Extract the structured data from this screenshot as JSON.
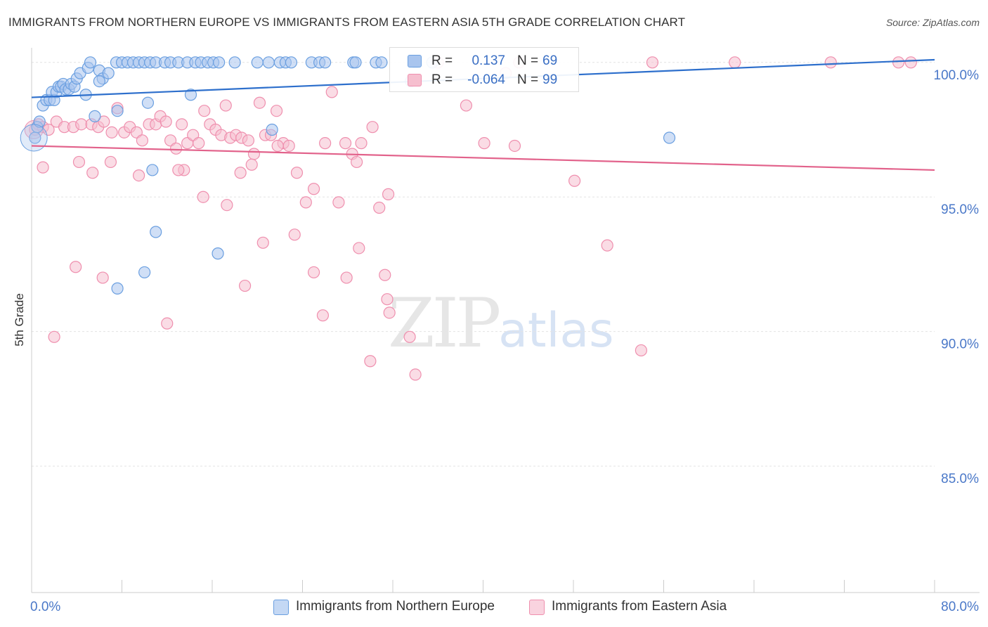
{
  "title": "IMMIGRANTS FROM NORTHERN EUROPE VS IMMIGRANTS FROM EASTERN ASIA 5TH GRADE CORRELATION CHART",
  "source": "Source: ZipAtlas.com",
  "watermark": {
    "zip": "ZIP",
    "atlas": "atlas"
  },
  "legend": {
    "r_label": "R =",
    "n_label": "N =",
    "rows": [
      {
        "r": "0.137",
        "n": "69",
        "color": "#6a9fe0"
      },
      {
        "r": "-0.064",
        "n": "99",
        "color": "#ef8fae"
      }
    ]
  },
  "colors": {
    "blue_fill": "#a9c5ee",
    "blue_stroke": "#6a9fe0",
    "blue_line": "#2d6fcc",
    "pink_fill": "#f6bfcf",
    "pink_stroke": "#ef8fae",
    "pink_line": "#e2628b",
    "axis_label": "#4a78c8"
  },
  "chart_data": {
    "type": "scatter",
    "title": "IMMIGRANTS FROM NORTHERN EUROPE VS IMMIGRANTS FROM EASTERN ASIA 5TH GRADE CORRELATION CHART",
    "xlabel": "",
    "ylabel": "5th Grade",
    "xlim": [
      0,
      80
    ],
    "ylim": [
      80.3,
      100.7
    ],
    "x_tick_labels": [
      {
        "value": 0,
        "label": "0.0%"
      },
      {
        "value": 80,
        "label": "80.0%"
      }
    ],
    "y_tick_labels": [
      {
        "value": 100,
        "label": "100.0%"
      },
      {
        "value": 95,
        "label": "95.0%"
      },
      {
        "value": 90,
        "label": "90.0%"
      },
      {
        "value": 85,
        "label": "85.0%"
      }
    ],
    "grid": true,
    "legend_position": "top-center",
    "series": [
      {
        "name": "Immigrants from Northern Europe",
        "r": 0.137,
        "n": 69,
        "trend": {
          "x": [
            0,
            80
          ],
          "y": [
            98.7,
            100.1
          ]
        },
        "points": [
          [
            0.3,
            97.2
          ],
          [
            0.5,
            97.6
          ],
          [
            0.7,
            97.8
          ],
          [
            1.0,
            98.4
          ],
          [
            1.3,
            98.6
          ],
          [
            1.6,
            98.6
          ],
          [
            1.8,
            98.9
          ],
          [
            2.0,
            98.6
          ],
          [
            2.2,
            98.9
          ],
          [
            2.4,
            99.1
          ],
          [
            2.6,
            99.1
          ],
          [
            2.8,
            99.2
          ],
          [
            3.0,
            99.0
          ],
          [
            3.3,
            99.0
          ],
          [
            3.5,
            99.2
          ],
          [
            3.8,
            99.1
          ],
          [
            4.0,
            99.4
          ],
          [
            4.3,
            99.6
          ],
          [
            4.8,
            98.8
          ],
          [
            5.0,
            99.8
          ],
          [
            5.2,
            100.0
          ],
          [
            6.0,
            99.7
          ],
          [
            6.3,
            99.4
          ],
          [
            6.8,
            99.6
          ],
          [
            6.0,
            99.3
          ],
          [
            7.5,
            100.0
          ],
          [
            8.0,
            100.0
          ],
          [
            8.5,
            100.0
          ],
          [
            9.0,
            100.0
          ],
          [
            9.5,
            100.0
          ],
          [
            10.0,
            100.0
          ],
          [
            10.5,
            100.0
          ],
          [
            11.0,
            100.0
          ],
          [
            11.8,
            100.0
          ],
          [
            12.3,
            100.0
          ],
          [
            13.0,
            100.0
          ],
          [
            13.8,
            100.0
          ],
          [
            14.5,
            100.0
          ],
          [
            15.0,
            100.0
          ],
          [
            15.6,
            100.0
          ],
          [
            16.1,
            100.0
          ],
          [
            16.6,
            100.0
          ],
          [
            18.0,
            100.0
          ],
          [
            20.0,
            100.0
          ],
          [
            21.0,
            100.0
          ],
          [
            22.0,
            100.0
          ],
          [
            22.5,
            100.0
          ],
          [
            23.0,
            100.0
          ],
          [
            24.8,
            100.0
          ],
          [
            25.5,
            100.0
          ],
          [
            26.0,
            100.0
          ],
          [
            28.5,
            100.0
          ],
          [
            28.7,
            100.0
          ],
          [
            30.5,
            100.0
          ],
          [
            31.0,
            100.0
          ],
          [
            34.0,
            100.0
          ],
          [
            33.6,
            99.3
          ],
          [
            35.5,
            100.0
          ],
          [
            14.1,
            98.8
          ],
          [
            10.3,
            98.5
          ],
          [
            5.6,
            98.0
          ],
          [
            7.6,
            98.2
          ],
          [
            21.3,
            97.5
          ],
          [
            56.5,
            97.2
          ],
          [
            10.7,
            96.0
          ],
          [
            11.0,
            93.7
          ],
          [
            16.5,
            92.9
          ],
          [
            10.0,
            92.2
          ],
          [
            7.6,
            91.6
          ]
        ]
      },
      {
        "name": "Immigrants from Eastern Asia",
        "r": -0.064,
        "n": 99,
        "trend": {
          "x": [
            0,
            80
          ],
          "y": [
            96.9,
            96.0
          ]
        },
        "points": [
          [
            0.3,
            97.5
          ],
          [
            0.6,
            97.7
          ],
          [
            1.0,
            97.6
          ],
          [
            1.5,
            97.5
          ],
          [
            2.2,
            97.8
          ],
          [
            2.9,
            97.6
          ],
          [
            3.7,
            97.6
          ],
          [
            4.4,
            97.7
          ],
          [
            5.3,
            97.7
          ],
          [
            5.9,
            97.6
          ],
          [
            6.4,
            97.8
          ],
          [
            7.1,
            97.4
          ],
          [
            7.6,
            98.3
          ],
          [
            8.2,
            97.4
          ],
          [
            8.7,
            97.6
          ],
          [
            9.3,
            97.4
          ],
          [
            9.8,
            97.1
          ],
          [
            10.4,
            97.7
          ],
          [
            11.0,
            97.7
          ],
          [
            11.4,
            98.0
          ],
          [
            11.9,
            97.8
          ],
          [
            12.3,
            97.1
          ],
          [
            12.8,
            96.8
          ],
          [
            13.3,
            97.7
          ],
          [
            13.8,
            97.0
          ],
          [
            14.3,
            97.3
          ],
          [
            14.8,
            97.0
          ],
          [
            15.3,
            98.2
          ],
          [
            15.8,
            97.7
          ],
          [
            16.3,
            97.5
          ],
          [
            16.8,
            97.3
          ],
          [
            17.2,
            98.4
          ],
          [
            17.6,
            97.2
          ],
          [
            18.1,
            97.3
          ],
          [
            18.6,
            97.2
          ],
          [
            19.2,
            97.1
          ],
          [
            19.7,
            96.6
          ],
          [
            20.2,
            98.5
          ],
          [
            20.7,
            97.3
          ],
          [
            21.2,
            97.3
          ],
          [
            21.7,
            98.2
          ],
          [
            22.3,
            97.0
          ],
          [
            22.8,
            96.9
          ],
          [
            23.5,
            95.9
          ],
          [
            24.3,
            94.8
          ],
          [
            25.0,
            95.3
          ],
          [
            26.0,
            97.0
          ],
          [
            26.6,
            98.9
          ],
          [
            27.2,
            94.8
          ],
          [
            27.8,
            97.0
          ],
          [
            28.4,
            96.6
          ],
          [
            28.8,
            96.3
          ],
          [
            29.2,
            97.0
          ],
          [
            30.2,
            97.6
          ],
          [
            30.8,
            94.6
          ],
          [
            31.6,
            95.1
          ],
          [
            4.2,
            96.3
          ],
          [
            5.4,
            95.9
          ],
          [
            7.0,
            96.3
          ],
          [
            9.5,
            95.8
          ],
          [
            13.5,
            96.0
          ],
          [
            17.3,
            94.7
          ],
          [
            18.5,
            95.9
          ],
          [
            19.5,
            96.2
          ],
          [
            20.5,
            93.3
          ],
          [
            21.8,
            96.9
          ],
          [
            23.3,
            93.6
          ],
          [
            25.0,
            92.2
          ],
          [
            25.8,
            90.6
          ],
          [
            27.9,
            92.0
          ],
          [
            29.0,
            93.1
          ],
          [
            30.0,
            88.9
          ],
          [
            31.3,
            92.1
          ],
          [
            31.5,
            91.2
          ],
          [
            31.7,
            90.7
          ],
          [
            33.5,
            89.8
          ],
          [
            34.0,
            88.4
          ],
          [
            36.0,
            100.0
          ],
          [
            42.0,
            99.6
          ],
          [
            43.2,
            100.0
          ],
          [
            55.0,
            100.0
          ],
          [
            62.3,
            100.0
          ],
          [
            70.8,
            100.0
          ],
          [
            76.8,
            100.0
          ],
          [
            77.9,
            100.0
          ],
          [
            54.0,
            89.3
          ],
          [
            48.1,
            95.6
          ],
          [
            38.5,
            98.4
          ],
          [
            40.1,
            97.0
          ],
          [
            42.8,
            96.9
          ],
          [
            13.0,
            96.0
          ],
          [
            1.0,
            96.1
          ],
          [
            15.2,
            95.0
          ],
          [
            6.3,
            92.0
          ],
          [
            2.0,
            89.8
          ],
          [
            3.9,
            92.4
          ],
          [
            51.0,
            93.2
          ],
          [
            18.9,
            91.7
          ],
          [
            12.0,
            90.3
          ]
        ]
      }
    ]
  }
}
